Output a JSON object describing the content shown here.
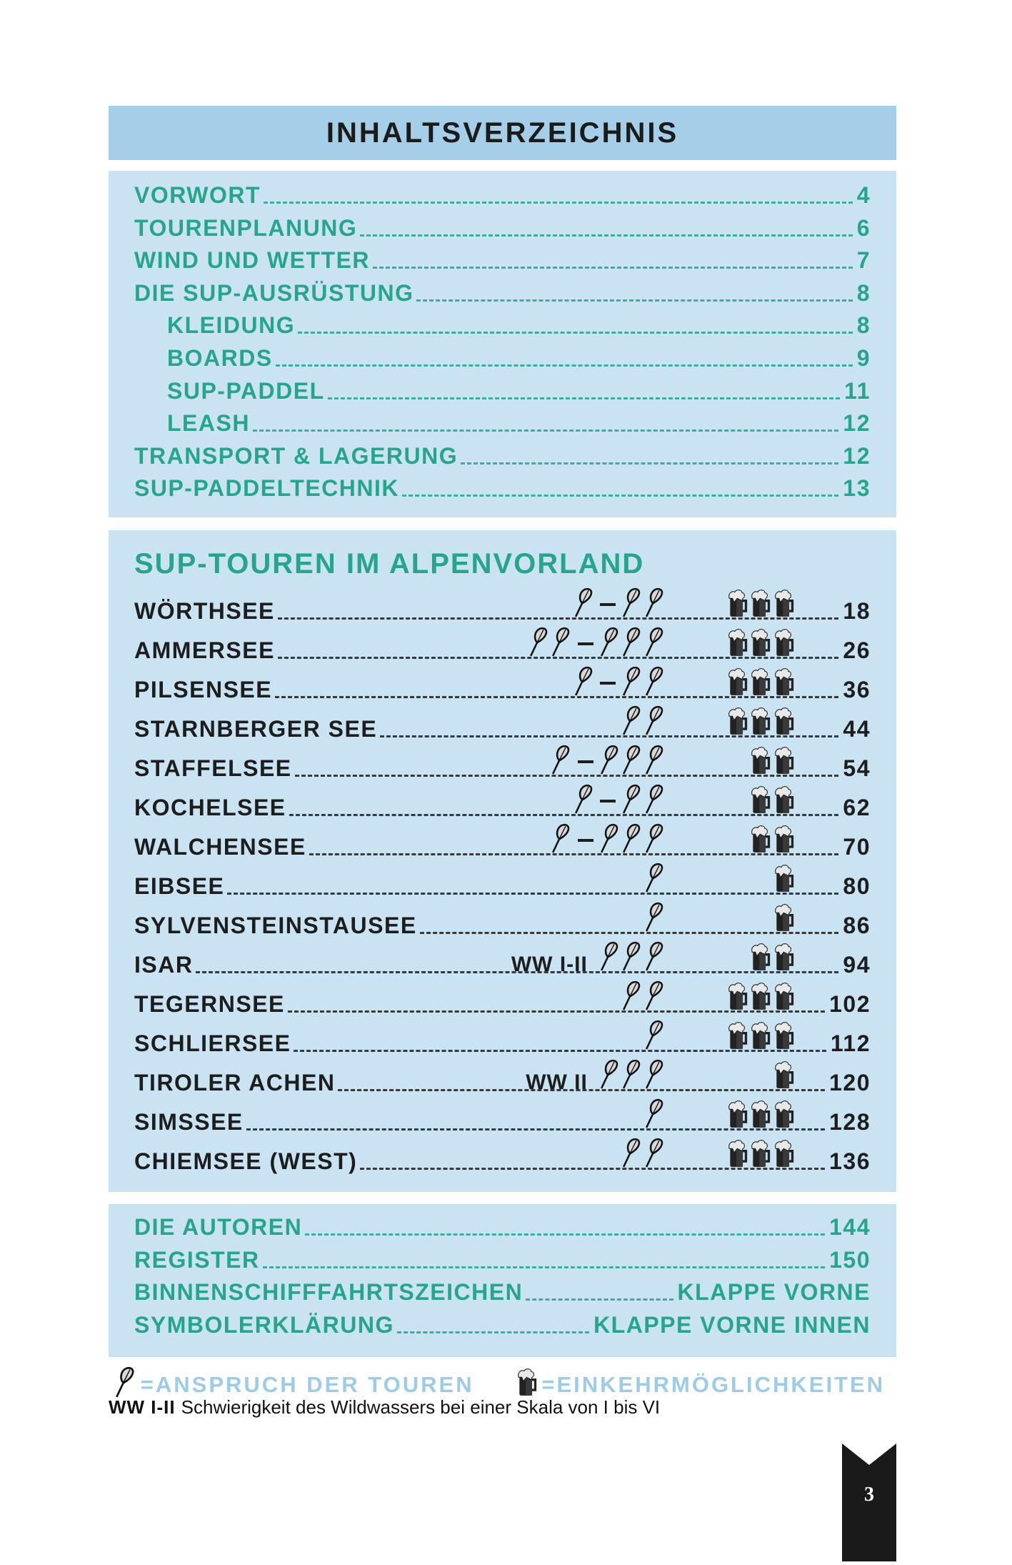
{
  "title": "INHALTSVERZEICHNIS",
  "intro_items": [
    {
      "label": "VORWORT",
      "page": "4",
      "indent": false
    },
    {
      "label": "TOURENPLANUNG",
      "page": "6",
      "indent": false
    },
    {
      "label": "WIND UND WETTER",
      "page": "7",
      "indent": false
    },
    {
      "label": "DIE SUP-AUSRÜSTUNG",
      "page": "8",
      "indent": false
    },
    {
      "label": "KLEIDUNG",
      "page": "8",
      "indent": true
    },
    {
      "label": "BOARDS",
      "page": "9",
      "indent": true
    },
    {
      "label": "SUP-PADDEL",
      "page": "11",
      "indent": true
    },
    {
      "label": "LEASH",
      "page": "12",
      "indent": true
    },
    {
      "label": "TRANSPORT & LAGERUNG",
      "page": "12",
      "indent": false
    },
    {
      "label": "SUP-PADDELTECHNIK",
      "page": "13",
      "indent": false
    }
  ],
  "tours_section": {
    "title": "SUP-TOUREN IM ALPENVORLAND",
    "tours": [
      {
        "label": "WÖRTHSEE",
        "difficulty_min": 1,
        "difficulty_max": 2,
        "beers": 3,
        "ww": "",
        "page": "18"
      },
      {
        "label": "AMMERSEE",
        "difficulty_min": 2,
        "difficulty_max": 3,
        "beers": 3,
        "ww": "",
        "page": "26"
      },
      {
        "label": "PILSENSEE",
        "difficulty_min": 1,
        "difficulty_max": 2,
        "beers": 3,
        "ww": "",
        "page": "36"
      },
      {
        "label": "STARNBERGER SEE",
        "difficulty_min": 2,
        "difficulty_max": 2,
        "beers": 3,
        "ww": "",
        "page": "44"
      },
      {
        "label": "STAFFELSEE",
        "difficulty_min": 1,
        "difficulty_max": 3,
        "beers": 2,
        "ww": "",
        "page": "54"
      },
      {
        "label": "KOCHELSEE",
        "difficulty_min": 1,
        "difficulty_max": 2,
        "beers": 2,
        "ww": "",
        "page": "62"
      },
      {
        "label": "WALCHENSEE",
        "difficulty_min": 1,
        "difficulty_max": 3,
        "beers": 2,
        "ww": "",
        "page": "70"
      },
      {
        "label": "EIBSEE",
        "difficulty_min": 1,
        "difficulty_max": 1,
        "beers": 1,
        "ww": "",
        "page": "80"
      },
      {
        "label": "SYLVENSTEINSTAUSEE",
        "difficulty_min": 1,
        "difficulty_max": 1,
        "beers": 1,
        "ww": "",
        "page": "86"
      },
      {
        "label": "ISAR",
        "difficulty_min": 3,
        "difficulty_max": 3,
        "beers": 2,
        "ww": "WW I-II",
        "page": "94"
      },
      {
        "label": "TEGERNSEE",
        "difficulty_min": 2,
        "difficulty_max": 2,
        "beers": 3,
        "ww": "",
        "page": "102"
      },
      {
        "label": "SCHLIERSEE",
        "difficulty_min": 1,
        "difficulty_max": 1,
        "beers": 3,
        "ww": "",
        "page": "112"
      },
      {
        "label": "TIROLER ACHEN",
        "difficulty_min": 3,
        "difficulty_max": 3,
        "beers": 1,
        "ww": "WW II",
        "page": "120"
      },
      {
        "label": "SIMSSEE",
        "difficulty_min": 1,
        "difficulty_max": 1,
        "beers": 3,
        "ww": "",
        "page": "128"
      },
      {
        "label": "CHIEMSEE (WEST)",
        "difficulty_min": 2,
        "difficulty_max": 2,
        "beers": 3,
        "ww": "",
        "page": "136"
      }
    ]
  },
  "appendix_items": [
    {
      "label": "DIE AUTOREN",
      "page": "144"
    },
    {
      "label": "REGISTER",
      "page": "150"
    },
    {
      "label": "BINNENSCHIFFFAHRTSZEICHEN",
      "page": "KLAPPE VORNE"
    },
    {
      "label": "SYMBOLERKLÄRUNG",
      "page": "KLAPPE VORNE INNEN"
    }
  ],
  "legend": {
    "paddle_icon": "paddle-icon",
    "paddle_text": "=ANSPRUCH DER TOUREN",
    "beer_icon": "beer-mug-icon",
    "beer_text": "=EINKEHRMÖGLICHKEITEN",
    "ww_label": "WW I-II",
    "ww_text": "Schwierigkeit des Wildwassers bei einer Skala von I bis VI"
  },
  "page_number": "3",
  "colors": {
    "header_bg": "#a5cfe8",
    "box_bg": "#cae3f3",
    "teal": "#27a48c",
    "legend_blue": "#9dcce8",
    "text_dark": "#1d1d1d"
  }
}
